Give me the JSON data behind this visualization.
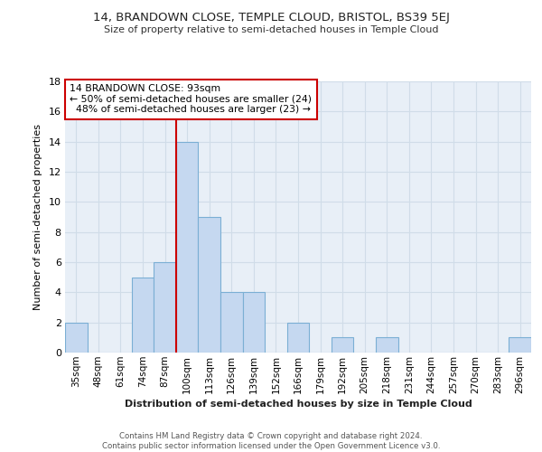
{
  "title": "14, BRANDOWN CLOSE, TEMPLE CLOUD, BRISTOL, BS39 5EJ",
  "subtitle": "Size of property relative to semi-detached houses in Temple Cloud",
  "xlabel_bottom": "Distribution of semi-detached houses by size in Temple Cloud",
  "ylabel": "Number of semi-detached properties",
  "bar_color": "#c5d8f0",
  "bar_edgecolor": "#7bafd4",
  "grid_color": "#d0dce8",
  "background_color": "#e8eff7",
  "categories": [
    "35sqm",
    "48sqm",
    "61sqm",
    "74sqm",
    "87sqm",
    "100sqm",
    "113sqm",
    "126sqm",
    "139sqm",
    "152sqm",
    "166sqm",
    "179sqm",
    "192sqm",
    "205sqm",
    "218sqm",
    "231sqm",
    "244sqm",
    "257sqm",
    "270sqm",
    "283sqm",
    "296sqm"
  ],
  "values": [
    2,
    0,
    0,
    5,
    6,
    14,
    9,
    4,
    4,
    0,
    2,
    0,
    1,
    0,
    1,
    0,
    0,
    0,
    0,
    0,
    1
  ],
  "property_label": "14 BRANDOWN CLOSE: 93sqm",
  "pct_smaller": 50,
  "count_smaller": 24,
  "pct_larger": 48,
  "count_larger": 23,
  "vline_x": 4.5,
  "annotation_box_edgecolor": "#cc0000",
  "vline_color": "#cc0000",
  "footnote1": "Contains HM Land Registry data © Crown copyright and database right 2024.",
  "footnote2": "Contains public sector information licensed under the Open Government Licence v3.0.",
  "ylim": [
    0,
    18
  ],
  "yticks": [
    0,
    2,
    4,
    6,
    8,
    10,
    12,
    14,
    16,
    18
  ]
}
